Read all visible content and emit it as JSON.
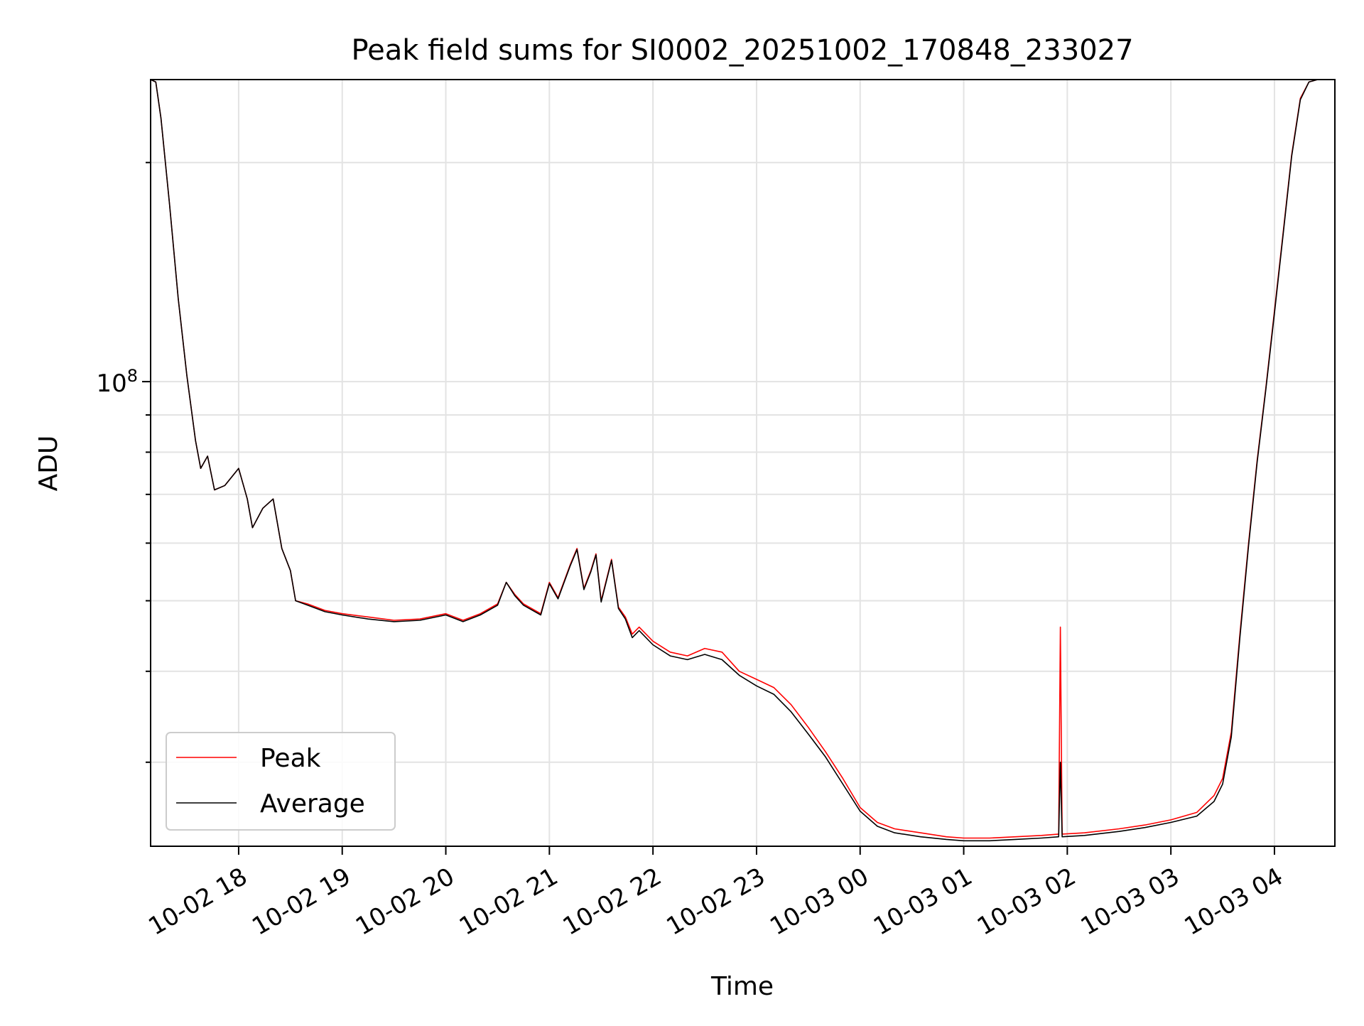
{
  "chart_data": {
    "type": "line",
    "title": "Peak field sums for SI0002_20251002_170848_233027",
    "xlabel": "Time",
    "ylabel": "ADU",
    "yscale": "log",
    "ylim": [
      23000000.0,
      260000000.0
    ],
    "xlim": [
      "2025-10-02 17:09",
      "2025-10-03 04:35"
    ],
    "grid": true,
    "legend": "bottom-left",
    "x_ticks": [
      {
        "t": "2025-10-02 18:00",
        "label": "10-02 18"
      },
      {
        "t": "2025-10-02 19:00",
        "label": "10-02 19"
      },
      {
        "t": "2025-10-02 20:00",
        "label": "10-02 20"
      },
      {
        "t": "2025-10-02 21:00",
        "label": "10-02 21"
      },
      {
        "t": "2025-10-02 22:00",
        "label": "10-02 22"
      },
      {
        "t": "2025-10-02 23:00",
        "label": "10-02 23"
      },
      {
        "t": "2025-10-03 00:00",
        "label": "10-03 00"
      },
      {
        "t": "2025-10-03 01:00",
        "label": "10-03 01"
      },
      {
        "t": "2025-10-03 02:00",
        "label": "10-03 02"
      },
      {
        "t": "2025-10-03 03:00",
        "label": "10-03 03"
      },
      {
        "t": "2025-10-03 04:00",
        "label": "10-03 04"
      }
    ],
    "y_ticks": [
      {
        "value": 100000000,
        "base": "10",
        "exp": "8"
      }
    ],
    "series": [
      {
        "name": "Peak",
        "color": "#ff0000",
        "points": [
          [
            "2025-10-02 17:09",
            260000000.0
          ],
          [
            "2025-10-02 17:12",
            258000000.0
          ],
          [
            "2025-10-02 17:15",
            230000000.0
          ],
          [
            "2025-10-02 17:20",
            175000000.0
          ],
          [
            "2025-10-02 17:25",
            130000000.0
          ],
          [
            "2025-10-02 17:30",
            102000000.0
          ],
          [
            "2025-10-02 17:35",
            83000000.0
          ],
          [
            "2025-10-02 17:38",
            76000000.0
          ],
          [
            "2025-10-02 17:42",
            79000000.0
          ],
          [
            "2025-10-02 17:46",
            71000000.0
          ],
          [
            "2025-10-02 17:52",
            72000000.0
          ],
          [
            "2025-10-02 18:00",
            76000000.0
          ],
          [
            "2025-10-02 18:05",
            69000000.0
          ],
          [
            "2025-10-02 18:08",
            63000000.0
          ],
          [
            "2025-10-02 18:14",
            67000000.0
          ],
          [
            "2025-10-02 18:20",
            69000000.0
          ],
          [
            "2025-10-02 18:25",
            59000000.0
          ],
          [
            "2025-10-02 18:30",
            55000000.0
          ],
          [
            "2025-10-02 18:33",
            50000000.0
          ],
          [
            "2025-10-02 18:40",
            49500000.0
          ],
          [
            "2025-10-02 18:50",
            48500000.0
          ],
          [
            "2025-10-02 19:00",
            48000000.0
          ],
          [
            "2025-10-02 19:15",
            47500000.0
          ],
          [
            "2025-10-02 19:30",
            47000000.0
          ],
          [
            "2025-10-02 19:45",
            47200000.0
          ],
          [
            "2025-10-02 20:00",
            48000000.0
          ],
          [
            "2025-10-02 20:10",
            47000000.0
          ],
          [
            "2025-10-02 20:20",
            48000000.0
          ],
          [
            "2025-10-02 20:30",
            49500000.0
          ],
          [
            "2025-10-02 20:35",
            53000000.0
          ],
          [
            "2025-10-02 20:40",
            51000000.0
          ],
          [
            "2025-10-02 20:45",
            49500000.0
          ],
          [
            "2025-10-02 20:55",
            48000000.0
          ],
          [
            "2025-10-02 21:00",
            53000000.0
          ],
          [
            "2025-10-02 21:05",
            50500000.0
          ],
          [
            "2025-10-02 21:12",
            56000000.0
          ],
          [
            "2025-10-02 21:16",
            59000000.0
          ],
          [
            "2025-10-02 21:20",
            52000000.0
          ],
          [
            "2025-10-02 21:24",
            55000000.0
          ],
          [
            "2025-10-02 21:27",
            58000000.0
          ],
          [
            "2025-10-02 21:30",
            50000000.0
          ],
          [
            "2025-10-02 21:36",
            57000000.0
          ],
          [
            "2025-10-02 21:40",
            49000000.0
          ],
          [
            "2025-10-02 21:44",
            47500000.0
          ],
          [
            "2025-10-02 21:48",
            45000000.0
          ],
          [
            "2025-10-02 21:52",
            46000000.0
          ],
          [
            "2025-10-02 22:00",
            44000000.0
          ],
          [
            "2025-10-02 22:10",
            42500000.0
          ],
          [
            "2025-10-02 22:20",
            42000000.0
          ],
          [
            "2025-10-02 22:30",
            43000000.0
          ],
          [
            "2025-10-02 22:40",
            42500000.0
          ],
          [
            "2025-10-02 22:50",
            40000000.0
          ],
          [
            "2025-10-02 23:00",
            39000000.0
          ],
          [
            "2025-10-02 23:10",
            38000000.0
          ],
          [
            "2025-10-02 23:20",
            36000000.0
          ],
          [
            "2025-10-02 23:30",
            33500000.0
          ],
          [
            "2025-10-02 23:40",
            31000000.0
          ],
          [
            "2025-10-02 23:50",
            28500000.0
          ],
          [
            "2025-10-03 00:00",
            26000000.0
          ],
          [
            "2025-10-03 00:10",
            24800000.0
          ],
          [
            "2025-10-03 00:20",
            24300000.0
          ],
          [
            "2025-10-03 00:35",
            24000000.0
          ],
          [
            "2025-10-03 00:50",
            23700000.0
          ],
          [
            "2025-10-03 01:00",
            23600000.0
          ],
          [
            "2025-10-03 01:15",
            23600000.0
          ],
          [
            "2025-10-03 01:30",
            23700000.0
          ],
          [
            "2025-10-03 01:45",
            23800000.0
          ],
          [
            "2025-10-03 01:55",
            23900000.0
          ],
          [
            "2025-10-03 01:56",
            46000000.0
          ],
          [
            "2025-10-03 01:57",
            23900000.0
          ],
          [
            "2025-10-03 02:10",
            24000000.0
          ],
          [
            "2025-10-03 02:30",
            24300000.0
          ],
          [
            "2025-10-03 02:45",
            24600000.0
          ],
          [
            "2025-10-03 03:00",
            25000000.0
          ],
          [
            "2025-10-03 03:15",
            25600000.0
          ],
          [
            "2025-10-03 03:25",
            27000000.0
          ],
          [
            "2025-10-03 03:30",
            28500000.0
          ],
          [
            "2025-10-03 03:35",
            33000000.0
          ],
          [
            "2025-10-03 03:40",
            45000000.0
          ],
          [
            "2025-10-03 03:45",
            60000000.0
          ],
          [
            "2025-10-03 03:50",
            78000000.0
          ],
          [
            "2025-10-03 03:55",
            98000000.0
          ],
          [
            "2025-10-03 04:00",
            125000000.0
          ],
          [
            "2025-10-03 04:05",
            160000000.0
          ],
          [
            "2025-10-03 04:10",
            205000000.0
          ],
          [
            "2025-10-03 04:15",
            245000000.0
          ],
          [
            "2025-10-03 04:20",
            258000000.0
          ],
          [
            "2025-10-03 04:25",
            260000000.0
          ],
          [
            "2025-10-03 04:35",
            260000000.0
          ]
        ]
      },
      {
        "name": "Average",
        "color": "#000000",
        "points": [
          [
            "2025-10-02 17:09",
            260000000.0
          ],
          [
            "2025-10-02 17:12",
            258000000.0
          ],
          [
            "2025-10-02 17:15",
            230000000.0
          ],
          [
            "2025-10-02 17:20",
            175000000.0
          ],
          [
            "2025-10-02 17:25",
            130000000.0
          ],
          [
            "2025-10-02 17:30",
            102000000.0
          ],
          [
            "2025-10-02 17:35",
            83000000.0
          ],
          [
            "2025-10-02 17:38",
            76000000.0
          ],
          [
            "2025-10-02 17:42",
            79000000.0
          ],
          [
            "2025-10-02 17:46",
            71000000.0
          ],
          [
            "2025-10-02 17:52",
            72000000.0
          ],
          [
            "2025-10-02 18:00",
            76000000.0
          ],
          [
            "2025-10-02 18:05",
            69000000.0
          ],
          [
            "2025-10-02 18:08",
            63000000.0
          ],
          [
            "2025-10-02 18:14",
            67000000.0
          ],
          [
            "2025-10-02 18:20",
            69000000.0
          ],
          [
            "2025-10-02 18:25",
            59000000.0
          ],
          [
            "2025-10-02 18:30",
            55000000.0
          ],
          [
            "2025-10-02 18:33",
            50000000.0
          ],
          [
            "2025-10-02 18:40",
            49300000.0
          ],
          [
            "2025-10-02 18:50",
            48300000.0
          ],
          [
            "2025-10-02 19:00",
            47800000.0
          ],
          [
            "2025-10-02 19:15",
            47200000.0
          ],
          [
            "2025-10-02 19:30",
            46800000.0
          ],
          [
            "2025-10-02 19:45",
            47000000.0
          ],
          [
            "2025-10-02 20:00",
            47800000.0
          ],
          [
            "2025-10-02 20:10",
            46800000.0
          ],
          [
            "2025-10-02 20:20",
            47800000.0
          ],
          [
            "2025-10-02 20:30",
            49300000.0
          ],
          [
            "2025-10-02 20:35",
            53000000.0
          ],
          [
            "2025-10-02 20:40",
            50800000.0
          ],
          [
            "2025-10-02 20:45",
            49300000.0
          ],
          [
            "2025-10-02 20:55",
            47800000.0
          ],
          [
            "2025-10-02 21:00",
            52800000.0
          ],
          [
            "2025-10-02 21:05",
            50300000.0
          ],
          [
            "2025-10-02 21:12",
            55800000.0
          ],
          [
            "2025-10-02 21:16",
            58800000.0
          ],
          [
            "2025-10-02 21:20",
            51800000.0
          ],
          [
            "2025-10-02 21:24",
            54800000.0
          ],
          [
            "2025-10-02 21:27",
            57800000.0
          ],
          [
            "2025-10-02 21:30",
            49800000.0
          ],
          [
            "2025-10-02 21:36",
            56800000.0
          ],
          [
            "2025-10-02 21:40",
            48800000.0
          ],
          [
            "2025-10-02 21:44",
            47200000.0
          ],
          [
            "2025-10-02 21:48",
            44500000.0
          ],
          [
            "2025-10-02 21:52",
            45500000.0
          ],
          [
            "2025-10-02 22:00",
            43500000.0
          ],
          [
            "2025-10-02 22:10",
            42000000.0
          ],
          [
            "2025-10-02 22:20",
            41500000.0
          ],
          [
            "2025-10-02 22:30",
            42200000.0
          ],
          [
            "2025-10-02 22:40",
            41500000.0
          ],
          [
            "2025-10-02 22:50",
            39500000.0
          ],
          [
            "2025-10-02 23:00",
            38200000.0
          ],
          [
            "2025-10-02 23:10",
            37200000.0
          ],
          [
            "2025-10-02 23:20",
            35200000.0
          ],
          [
            "2025-10-02 23:30",
            32800000.0
          ],
          [
            "2025-10-02 23:40",
            30500000.0
          ],
          [
            "2025-10-02 23:50",
            28000000.0
          ],
          [
            "2025-10-03 00:00",
            25700000.0
          ],
          [
            "2025-10-03 00:10",
            24500000.0
          ],
          [
            "2025-10-03 00:20",
            24000000.0
          ],
          [
            "2025-10-03 00:35",
            23700000.0
          ],
          [
            "2025-10-03 00:50",
            23500000.0
          ],
          [
            "2025-10-03 01:00",
            23400000.0
          ],
          [
            "2025-10-03 01:15",
            23400000.0
          ],
          [
            "2025-10-03 01:30",
            23500000.0
          ],
          [
            "2025-10-03 01:45",
            23600000.0
          ],
          [
            "2025-10-03 01:55",
            23700000.0
          ],
          [
            "2025-10-03 01:56",
            30000000.0
          ],
          [
            "2025-10-03 01:57",
            23700000.0
          ],
          [
            "2025-10-03 02:10",
            23800000.0
          ],
          [
            "2025-10-03 02:30",
            24100000.0
          ],
          [
            "2025-10-03 02:45",
            24400000.0
          ],
          [
            "2025-10-03 03:00",
            24800000.0
          ],
          [
            "2025-10-03 03:15",
            25300000.0
          ],
          [
            "2025-10-03 03:25",
            26500000.0
          ],
          [
            "2025-10-03 03:30",
            28000000.0
          ],
          [
            "2025-10-03 03:35",
            32500000.0
          ],
          [
            "2025-10-03 03:40",
            44500000.0
          ],
          [
            "2025-10-03 03:45",
            59500000.0
          ],
          [
            "2025-10-03 03:50",
            77500000.0
          ],
          [
            "2025-10-03 03:55",
            97500000.0
          ],
          [
            "2025-10-03 04:00",
            124000000.0
          ],
          [
            "2025-10-03 04:05",
            159000000.0
          ],
          [
            "2025-10-03 04:10",
            204000000.0
          ],
          [
            "2025-10-03 04:15",
            244000000.0
          ],
          [
            "2025-10-03 04:20",
            258000000.0
          ],
          [
            "2025-10-03 04:25",
            260000000.0
          ],
          [
            "2025-10-03 04:35",
            260000000.0
          ]
        ]
      }
    ]
  }
}
